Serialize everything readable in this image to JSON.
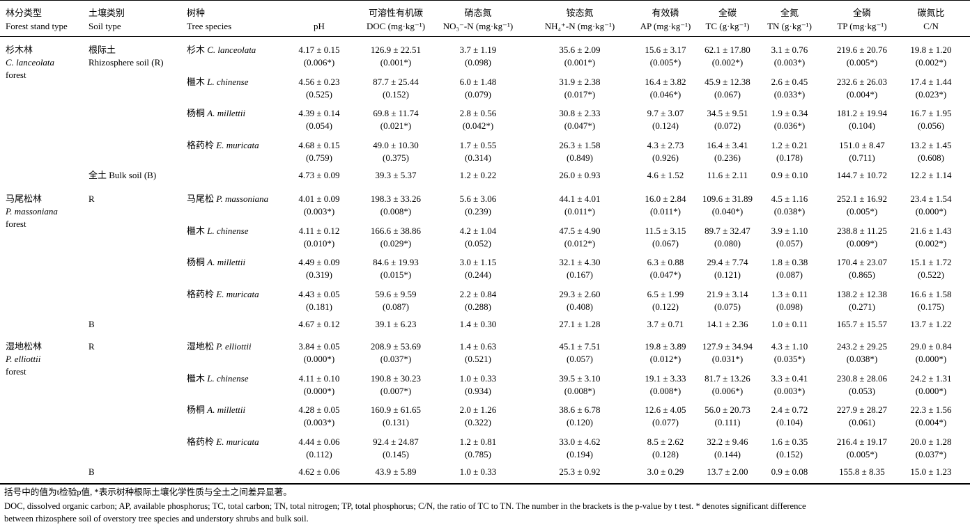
{
  "header": {
    "stand_zh": "林分类型",
    "stand_en": "Forest stand type",
    "soil_zh": "土壤类别",
    "soil_en": "Soil type",
    "species_zh": "树种",
    "species_en": "Tree species",
    "cols": [
      {
        "zh": "",
        "en": "pH"
      },
      {
        "zh": "可溶性有机碳",
        "en": "DOC (mg·kg⁻¹)"
      },
      {
        "zh": "硝态氮",
        "en": "NO₃⁻-N (mg·kg⁻¹)"
      },
      {
        "zh": "铵态氮",
        "en": "NH₄⁺-N (mg·kg⁻¹)"
      },
      {
        "zh": "有效磷",
        "en": "AP (mg·kg⁻¹)"
      },
      {
        "zh": "全碳",
        "en": "TC (g·kg⁻¹)"
      },
      {
        "zh": "全氮",
        "en": "TN (g·kg⁻¹)"
      },
      {
        "zh": "全磷",
        "en": "TP (mg·kg⁻¹)"
      },
      {
        "zh": "碳氮比",
        "en": "C/N"
      }
    ]
  },
  "groups": [
    {
      "stand": [
        "杉木林",
        "C. lanceolata",
        "forest"
      ],
      "soil": [
        "根际土",
        "Rhizosphere soil (R)"
      ],
      "rows": [
        {
          "species_zh": "杉木",
          "species_en": "C. lanceolata",
          "vals": [
            "4.17 ± 0.15",
            "126.9 ± 22.51",
            "3.7 ± 1.19",
            "35.6 ± 2.09",
            "15.6 ± 3.17",
            "62.1 ± 17.80",
            "3.1 ± 0.76",
            "219.6 ± 20.76",
            "19.8 ± 1.20"
          ],
          "p": [
            "(0.006*)",
            "(0.001*)",
            "(0.098)",
            "(0.001*)",
            "(0.005*)",
            "(0.002*)",
            "(0.003*)",
            "(0.005*)",
            "(0.002*)"
          ]
        },
        {
          "species_zh": "檵木",
          "species_en": "L. chinense",
          "vals": [
            "4.56 ± 0.23",
            "87.7 ± 25.44",
            "6.0 ± 1.48",
            "31.9 ± 2.38",
            "16.4 ± 3.82",
            "45.9 ± 12.38",
            "2.6 ± 0.45",
            "232.6 ± 26.03",
            "17.4 ± 1.44"
          ],
          "p": [
            "(0.525)",
            "(0.152)",
            "(0.079)",
            "(0.017*)",
            "(0.046*)",
            "(0.067)",
            "(0.033*)",
            "(0.004*)",
            "(0.023*)"
          ]
        },
        {
          "species_zh": "杨桐",
          "species_en": "A. millettii",
          "vals": [
            "4.39 ± 0.14",
            "69.8 ± 11.74",
            "2.8 ± 0.56",
            "30.8 ± 2.33",
            "9.7 ± 3.07",
            "34.5 ± 9.51",
            "1.9 ± 0.34",
            "181.2 ± 19.94",
            "16.7 ± 1.95"
          ],
          "p": [
            "(0.054)",
            "(0.021*)",
            "(0.042*)",
            "(0.047*)",
            "(0.124)",
            "(0.072)",
            "(0.036*)",
            "(0.104)",
            "(0.056)"
          ]
        },
        {
          "species_zh": "格药柃",
          "species_en": "E. muricata",
          "vals": [
            "4.68 ± 0.15",
            "49.0 ± 10.30",
            "1.7 ± 0.55",
            "26.3 ± 1.58",
            "4.3 ± 2.73",
            "16.4 ± 3.41",
            "1.2 ± 0.21",
            "151.0 ± 8.47",
            "13.2 ± 1.45"
          ],
          "p": [
            "(0.759)",
            "(0.375)",
            "(0.314)",
            "(0.849)",
            "(0.926)",
            "(0.236)",
            "(0.178)",
            "(0.711)",
            "(0.608)"
          ]
        }
      ],
      "bulk_label": "全土  Bulk soil (B)",
      "bulk": [
        "4.73 ± 0.09",
        "39.3 ± 5.37",
        "1.2 ± 0.22",
        "26.0 ± 0.93",
        "4.6 ± 1.52",
        "11.6 ± 2.11",
        "0.9 ± 0.10",
        "144.7 ± 10.72",
        "12.2 ± 1.14"
      ]
    },
    {
      "stand": [
        "马尾松林",
        "P. massoniana",
        "forest"
      ],
      "soil": [
        "R",
        ""
      ],
      "rows": [
        {
          "species_zh": "马尾松",
          "species_en": "P. massoniana",
          "vals": [
            "4.01 ± 0.09",
            "198.3 ± 33.26",
            "5.6 ± 3.06",
            "44.1 ± 4.01",
            "16.0 ± 2.84",
            "109.6 ± 31.89",
            "4.5 ± 1.16",
            "252.1 ± 16.92",
            "23.4 ± 1.54"
          ],
          "p": [
            "(0.003*)",
            "(0.008*)",
            "(0.239)",
            "(0.011*)",
            "(0.011*)",
            "(0.040*)",
            "(0.038*)",
            "(0.005*)",
            "(0.000*)"
          ]
        },
        {
          "species_zh": "檵木",
          "species_en": "L. chinense",
          "vals": [
            "4.11 ± 0.12",
            "166.6 ± 38.86",
            "4.2 ± 1.04",
            "47.5 ± 4.90",
            "11.5 ± 3.15",
            "89.7 ± 32.47",
            "3.9 ± 1.10",
            "238.8 ± 11.25",
            "21.6 ± 1.43"
          ],
          "p": [
            "(0.010*)",
            "(0.029*)",
            "(0.052)",
            "(0.012*)",
            "(0.067)",
            "(0.080)",
            "(0.057)",
            "(0.009*)",
            "(0.002*)"
          ]
        },
        {
          "species_zh": "杨桐",
          "species_en": "A. millettii",
          "vals": [
            "4.49 ± 0.09",
            "84.6 ± 19.93",
            "3.0 ± 1.15",
            "32.1 ± 4.30",
            "6.3 ± 0.88",
            "29.4 ± 7.74",
            "1.8 ± 0.38",
            "170.4 ± 23.07",
            "15.1 ± 1.72"
          ],
          "p": [
            "(0.319)",
            "(0.015*)",
            "(0.244)",
            "(0.167)",
            "(0.047*)",
            "(0.121)",
            "(0.087)",
            "(0.865)",
            "(0.522)"
          ]
        },
        {
          "species_zh": "格药柃",
          "species_en": "E. muricata",
          "vals": [
            "4.43 ± 0.05",
            "59.6 ± 9.59",
            "2.2 ± 0.84",
            "29.3 ± 2.60",
            "6.5 ± 1.99",
            "21.9 ± 3.14",
            "1.3 ± 0.11",
            "138.2 ± 12.38",
            "16.6 ± 1.58"
          ],
          "p": [
            "(0.181)",
            "(0.087)",
            "(0.288)",
            "(0.408)",
            "(0.122)",
            "(0.075)",
            "(0.098)",
            "(0.271)",
            "(0.175)"
          ]
        }
      ],
      "bulk_label": "B",
      "bulk": [
        "4.67 ± 0.12",
        "39.1 ± 6.23",
        "1.4 ± 0.30",
        "27.1 ± 1.28",
        "3.7 ± 0.71",
        "14.1 ± 2.36",
        "1.0 ± 0.11",
        "165.7 ± 15.57",
        "13.7 ± 1.22"
      ]
    },
    {
      "stand": [
        "湿地松林",
        "P. elliottii",
        "forest"
      ],
      "soil": [
        "R",
        ""
      ],
      "rows": [
        {
          "species_zh": "湿地松",
          "species_en": "P. elliottii",
          "vals": [
            "3.84 ± 0.05",
            "208.9 ± 53.69",
            "1.4 ± 0.63",
            "45.1 ± 7.51",
            "19.8 ± 3.89",
            "127.9 ± 34.94",
            "4.3 ± 1.10",
            "243.2 ± 29.25",
            "29.0 ± 0.84"
          ],
          "p": [
            "(0.000*)",
            "(0.037*)",
            "(0.521)",
            "(0.057)",
            "(0.012*)",
            "(0.031*)",
            "(0.035*)",
            "(0.038*)",
            "(0.000*)"
          ]
        },
        {
          "species_zh": "檵木",
          "species_en": "L. chinense",
          "vals": [
            "4.11 ± 0.10",
            "190.8 ± 30.23",
            "1.0 ± 0.33",
            "39.5 ± 3.10",
            "19.1 ± 3.33",
            "81.7 ± 13.26",
            "3.3 ± 0.41",
            "230.8 ± 28.06",
            "24.2 ± 1.31"
          ],
          "p": [
            "(0.000*)",
            "(0.007*)",
            "(0.934)",
            "(0.008*)",
            "(0.008*)",
            "(0.006*)",
            "(0.003*)",
            "(0.053)",
            "(0.000*)"
          ]
        },
        {
          "species_zh": "杨桐",
          "species_en": "A. millettii",
          "vals": [
            "4.28 ± 0.05",
            "160.9 ± 61.65",
            "2.0 ± 1.26",
            "38.6 ± 6.78",
            "12.6 ± 4.05",
            "56.0 ± 20.73",
            "2.4 ± 0.72",
            "227.9 ± 28.27",
            "22.3 ± 1.56"
          ],
          "p": [
            "(0.003*)",
            "(0.131)",
            "(0.322)",
            "(0.120)",
            "(0.077)",
            "(0.111)",
            "(0.104)",
            "(0.061)",
            "(0.004*)"
          ]
        },
        {
          "species_zh": "格药柃",
          "species_en": "E. muricata",
          "vals": [
            "4.44 ± 0.06",
            "92.4 ± 24.87",
            "1.2 ± 0.81",
            "33.0 ± 4.62",
            "8.5 ± 2.62",
            "32.2 ± 9.46",
            "1.6 ± 0.35",
            "216.4 ± 19.17",
            "20.0 ± 1.28"
          ],
          "p": [
            "(0.112)",
            "(0.145)",
            "(0.785)",
            "(0.194)",
            "(0.128)",
            "(0.144)",
            "(0.152)",
            "(0.005*)",
            "(0.037*)"
          ]
        }
      ],
      "bulk_label": "B",
      "bulk": [
        "4.62 ± 0.06",
        "43.9 ± 5.89",
        "1.0 ± 0.33",
        "25.3 ± 0.92",
        "3.0 ± 0.29",
        "13.7 ± 2.00",
        "0.9 ± 0.08",
        "155.8 ± 8.35",
        "15.0 ± 1.23"
      ]
    }
  ],
  "footnotes": {
    "zh": "括号中的值为t检验p值, *表示树种根际土壤化学性质与全土之间差异显著。",
    "en1": "DOC, dissolved organic carbon; AP, available phosphorus; TC, total carbon; TN, total nitrogen; TP, total phosphorus; C/N, the ratio of TC to TN. The number in the brackets is the p-value by t test. * denotes significant difference",
    "en2": "between rhizosphere soil of overstory tree species and understory shrubs and bulk soil."
  }
}
